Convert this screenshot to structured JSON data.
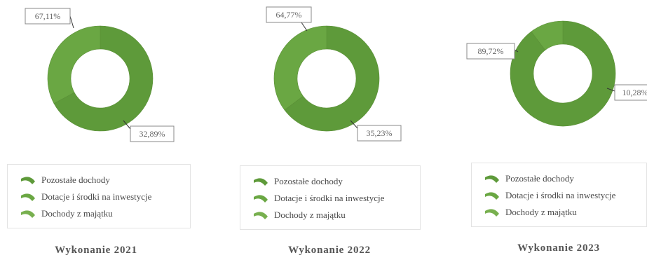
{
  "palette": {
    "Pozostałe dochody": "#5e9a3a",
    "Dotacje i środki na inwestycje": "#6aa743",
    "Dochody z majątku": "#78b04f"
  },
  "chart_data": [
    {
      "type": "pie",
      "title": "Wykonanie 2021",
      "legend": "bottom",
      "series": [
        {
          "name": "Pozostałe dochody",
          "value": 67.11,
          "label": "67,11%"
        },
        {
          "name": "Dotacje i środki na inwestycje",
          "value": 32.89,
          "label": "32,89%"
        },
        {
          "name": "Dochody z majątku",
          "value": 0
        }
      ]
    },
    {
      "type": "pie",
      "title": "Wykonanie 2022",
      "legend": "bottom",
      "series": [
        {
          "name": "Pozostałe dochody",
          "value": 64.77,
          "label": "64,77%"
        },
        {
          "name": "Dotacje i środki na inwestycje",
          "value": 35.23,
          "label": "35,23%"
        },
        {
          "name": "Dochody z majątku",
          "value": 0
        }
      ]
    },
    {
      "type": "pie",
      "title": "Wykonanie 2023",
      "legend": "bottom",
      "series": [
        {
          "name": "Pozostałe dochody",
          "value": 89.72,
          "label": "89,72%"
        },
        {
          "name": "Dotacje i środki na inwestycje",
          "value": 10.28,
          "label": "10,28%"
        },
        {
          "name": "Dochody z majątku",
          "value": 0
        }
      ]
    }
  ]
}
